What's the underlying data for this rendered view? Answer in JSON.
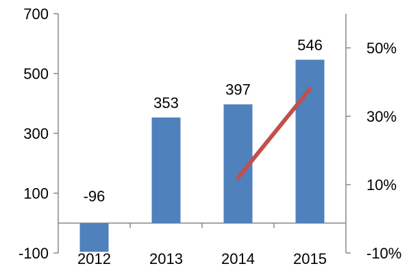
{
  "chart_data": {
    "type": "bar",
    "title": "",
    "xlabel": "",
    "ylabel": "",
    "categories": [
      "2012",
      "2013",
      "2014",
      "2015"
    ],
    "ylim": [
      -100,
      700
    ],
    "y_ticks": [
      "-100",
      "100",
      "300",
      "500",
      "700"
    ],
    "y2lim": [
      -10,
      60
    ],
    "y2_ticks": [
      "-10%",
      "10%",
      "30%",
      "50%"
    ],
    "grid": false,
    "legend": "none",
    "series": [
      {
        "type": "bar",
        "axis": "left",
        "color": "#4f81bd",
        "values": [
          -96,
          353,
          397,
          546
        ],
        "data_labels": [
          "-96",
          "353",
          "397",
          "546"
        ]
      },
      {
        "type": "line",
        "axis": "right",
        "color": "#c0504d",
        "x": [
          "2014",
          "2015"
        ],
        "values": [
          12,
          38
        ]
      }
    ]
  }
}
